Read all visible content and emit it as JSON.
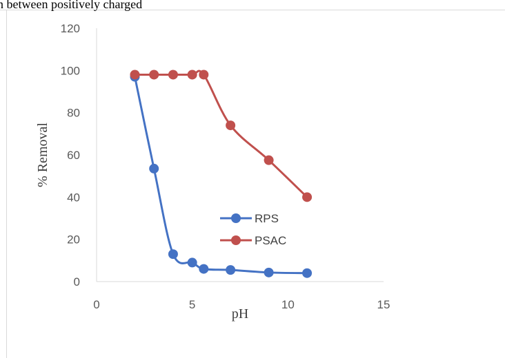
{
  "page_text": "n  between  positively  charged",
  "chart_data": {
    "type": "line",
    "title": "",
    "xlabel": "pH",
    "ylabel": "% Removal",
    "xlim": [
      0,
      15
    ],
    "ylim": [
      0,
      120
    ],
    "x_ticks": [
      "0",
      "5",
      "10",
      "15"
    ],
    "y_ticks": [
      "0",
      "20",
      "40",
      "60",
      "80",
      "100",
      "120"
    ],
    "grid": false,
    "smooth": true,
    "legend_position": "center-right",
    "series": [
      {
        "name": "RPS",
        "color": "#4472C4",
        "points": [
          [
            2,
            97
          ],
          [
            3,
            53.5
          ],
          [
            4,
            13
          ],
          [
            5,
            9
          ],
          [
            5.6,
            6
          ],
          [
            7,
            5.5
          ],
          [
            9,
            4.3
          ],
          [
            11,
            4
          ]
        ]
      },
      {
        "name": "PSAC",
        "color": "#C0504D",
        "points": [
          [
            2,
            98
          ],
          [
            3,
            98
          ],
          [
            4,
            98
          ],
          [
            5,
            98
          ],
          [
            5.6,
            98
          ],
          [
            7,
            74
          ],
          [
            9,
            57.5
          ],
          [
            11,
            40
          ]
        ]
      }
    ]
  }
}
